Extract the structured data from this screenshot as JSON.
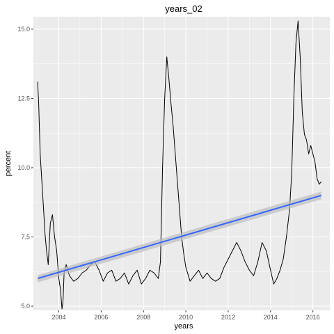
{
  "chart_data": {
    "type": "line",
    "title": "years_02",
    "xlabel": "years",
    "ylabel": "percent",
    "x_ticks": [
      2004,
      2006,
      2008,
      2010,
      2012,
      2014,
      2016
    ],
    "x_tick_labels": [
      "2004",
      "2006",
      "2008",
      "2010",
      "2012",
      "2014",
      "2016"
    ],
    "y_ticks": [
      5.0,
      7.5,
      10.0,
      12.5,
      15.0
    ],
    "y_tick_labels": [
      "5.0",
      "7.5",
      "10.0",
      "12.5",
      "15.0"
    ],
    "xlim": [
      2002.8,
      2016.8
    ],
    "ylim": [
      4.85,
      15.45
    ],
    "grid": true,
    "colors": {
      "panel": "#ebebeb",
      "grid": "#ffffff",
      "line": "#000000",
      "trend": "#3366ff",
      "ribbon": "#bdbdbd"
    },
    "series": [
      {
        "x": [
          2003.0,
          2003.05,
          2003.12,
          2003.2,
          2003.28,
          2003.35,
          2003.42,
          2003.5,
          2003.6,
          2003.7,
          2003.8,
          2003.9,
          2004.0,
          2004.08,
          2004.15,
          2004.2,
          2004.25,
          2004.35,
          2004.5,
          2004.7,
          2004.9,
          2005.1,
          2005.3,
          2005.5,
          2005.7,
          2005.9,
          2006.1,
          2006.3,
          2006.5,
          2006.7,
          2006.9,
          2007.1,
          2007.3,
          2007.5,
          2007.7,
          2007.9,
          2008.1,
          2008.3,
          2008.5,
          2008.7,
          2008.8,
          2008.9,
          2009.0,
          2009.1,
          2009.2,
          2009.3,
          2009.4,
          2009.5,
          2009.6,
          2009.7,
          2009.8,
          2009.9,
          2010.0,
          2010.2,
          2010.4,
          2010.6,
          2010.8,
          2011.0,
          2011.2,
          2011.4,
          2011.6,
          2011.8,
          2012.0,
          2012.2,
          2012.4,
          2012.6,
          2012.8,
          2013.0,
          2013.2,
          2013.4,
          2013.6,
          2013.8,
          2014.0,
          2014.15,
          2014.3,
          2014.45,
          2014.6,
          2014.75,
          2014.9,
          2015.0,
          2015.1,
          2015.2,
          2015.3,
          2015.4,
          2015.5,
          2015.6,
          2015.7,
          2015.8,
          2015.9,
          2016.0,
          2016.1,
          2016.2,
          2016.3,
          2016.4
        ],
        "y": [
          13.1,
          12.3,
          10.5,
          9.5,
          8.5,
          7.6,
          7.0,
          6.5,
          8.0,
          8.3,
          7.5,
          7.0,
          6.0,
          5.6,
          4.9,
          5.2,
          6.2,
          6.5,
          6.1,
          5.9,
          6.0,
          6.2,
          6.3,
          6.5,
          6.6,
          6.3,
          5.9,
          6.2,
          6.3,
          5.9,
          6.0,
          6.2,
          5.8,
          6.1,
          6.3,
          5.8,
          6.0,
          6.3,
          6.2,
          6.0,
          6.6,
          10.0,
          12.5,
          14.0,
          13.2,
          12.3,
          11.5,
          10.5,
          9.5,
          8.5,
          7.5,
          6.9,
          6.4,
          5.9,
          6.1,
          6.3,
          6.0,
          6.2,
          6.0,
          5.9,
          6.0,
          6.4,
          6.7,
          7.0,
          7.3,
          7.0,
          6.6,
          6.3,
          6.1,
          6.6,
          7.3,
          7.0,
          6.3,
          5.8,
          6.0,
          6.3,
          6.7,
          7.5,
          8.5,
          9.8,
          12.5,
          14.5,
          15.3,
          14.0,
          12.0,
          11.2,
          11.0,
          10.5,
          10.8,
          10.5,
          10.2,
          9.6,
          9.4,
          9.5
        ]
      }
    ],
    "trend": {
      "x": [
        2003.0,
        2016.4
      ],
      "y": [
        6.0,
        9.0
      ],
      "ribbon_upper": [
        6.12,
        9.14
      ],
      "ribbon_lower": [
        5.86,
        8.86
      ]
    }
  }
}
